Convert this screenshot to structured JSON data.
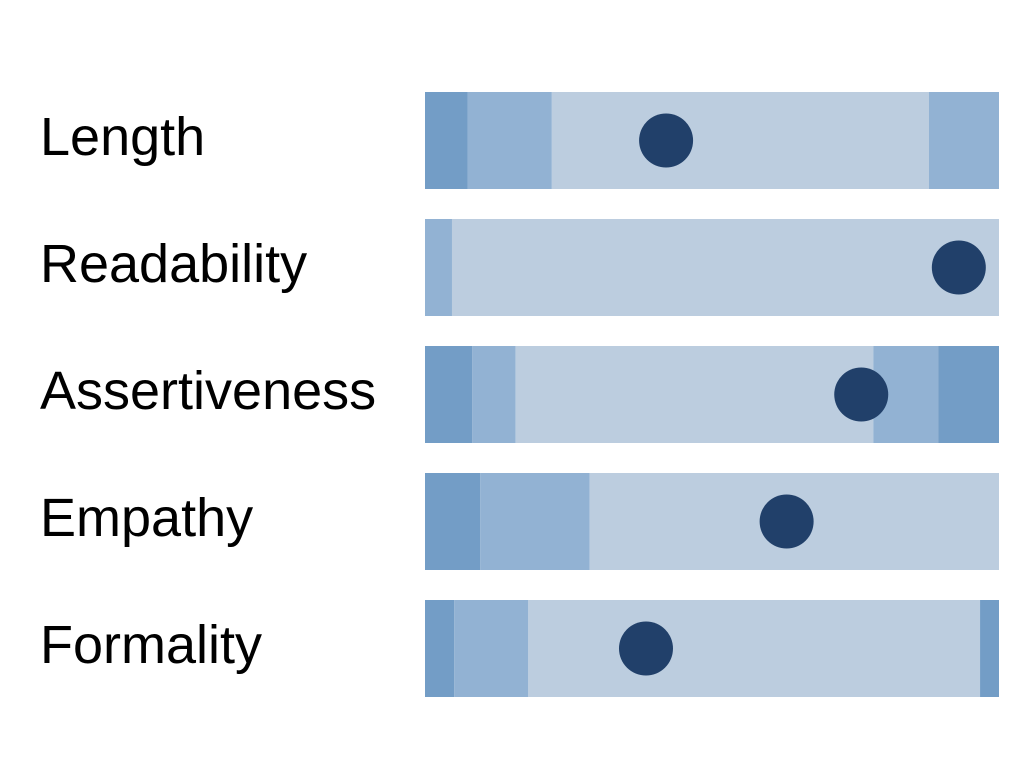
{
  "colors": {
    "background": "#ffffff",
    "band_light": "#bccddf",
    "band_mid": "#92b2d3",
    "band_dark": "#739dc6",
    "marker": "#21406a",
    "label": "#000000"
  },
  "chart_data": {
    "type": "bullet",
    "title": "",
    "xlabel": "",
    "ylabel": "",
    "xlim": [
      0,
      1
    ],
    "grid": false,
    "legend": "none",
    "categories": [
      "Length",
      "Readability",
      "Assertiveness",
      "Empathy",
      "Formality"
    ],
    "rows": [
      {
        "label": "Length",
        "marker": 0.42,
        "bands": [
          {
            "start": 0.0,
            "end": 0.074,
            "level": "dark"
          },
          {
            "start": 0.074,
            "end": 0.221,
            "level": "mid"
          },
          {
            "start": 0.221,
            "end": 0.878,
            "level": "light"
          },
          {
            "start": 0.878,
            "end": 1.0,
            "level": "mid"
          }
        ]
      },
      {
        "label": "Readability",
        "marker": 0.93,
        "bands": [
          {
            "start": 0.0,
            "end": 0.047,
            "level": "mid"
          },
          {
            "start": 0.047,
            "end": 1.0,
            "level": "light"
          }
        ]
      },
      {
        "label": "Assertiveness",
        "marker": 0.76,
        "bands": [
          {
            "start": 0.0,
            "end": 0.082,
            "level": "dark"
          },
          {
            "start": 0.082,
            "end": 0.158,
            "level": "mid"
          },
          {
            "start": 0.158,
            "end": 0.781,
            "level": "light"
          },
          {
            "start": 0.781,
            "end": 0.894,
            "level": "mid"
          },
          {
            "start": 0.894,
            "end": 1.0,
            "level": "dark"
          }
        ]
      },
      {
        "label": "Empathy",
        "marker": 0.63,
        "bands": [
          {
            "start": 0.0,
            "end": 0.096,
            "level": "dark"
          },
          {
            "start": 0.096,
            "end": 0.287,
            "level": "mid"
          },
          {
            "start": 0.287,
            "end": 1.0,
            "level": "light"
          }
        ]
      },
      {
        "label": "Formality",
        "marker": 0.385,
        "bands": [
          {
            "start": 0.0,
            "end": 0.051,
            "level": "dark"
          },
          {
            "start": 0.051,
            "end": 0.18,
            "level": "mid"
          },
          {
            "start": 0.18,
            "end": 0.967,
            "level": "light"
          },
          {
            "start": 0.967,
            "end": 1.0,
            "level": "dark"
          }
        ]
      }
    ]
  }
}
